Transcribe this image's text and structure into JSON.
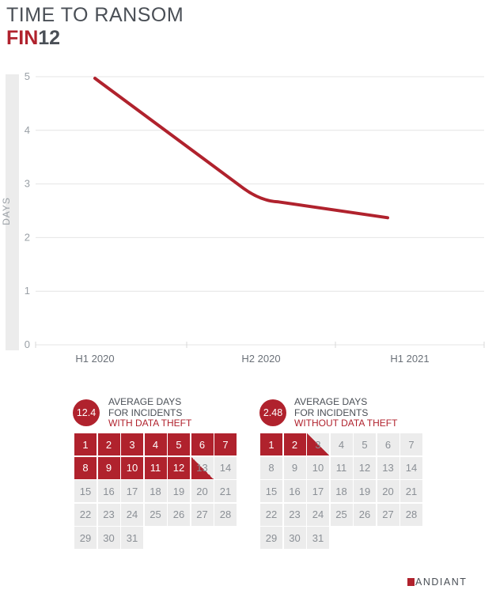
{
  "title": {
    "line1": "TIME TO RANSOM",
    "line2_red": "FIN",
    "line2_rest": "12"
  },
  "chart_data": {
    "type": "line",
    "categories": [
      "H1 2020",
      "H2 2020",
      "H1 2021"
    ],
    "series": [
      {
        "values": [
          4.97,
          2.68,
          2.37
        ],
        "color": "#b0222d"
      }
    ],
    "ylabel": "DAYS",
    "ylim": [
      0,
      5
    ],
    "yticks": [
      0,
      1,
      2,
      3,
      4,
      5
    ],
    "grid": true
  },
  "calendars": [
    {
      "avg": "12.4",
      "line1": "AVERAGE DAYS",
      "line2": "FOR INCIDENTS",
      "line3": "WITH DATA THEFT",
      "full_red_days": 12,
      "partial_day": 13,
      "days": [
        1,
        2,
        3,
        4,
        5,
        6,
        7,
        8,
        9,
        10,
        11,
        12,
        13,
        14,
        15,
        16,
        17,
        18,
        19,
        20,
        21,
        22,
        23,
        24,
        25,
        26,
        27,
        28,
        29,
        30,
        31
      ]
    },
    {
      "avg": "2.48",
      "line1": "AVERAGE DAYS",
      "line2": "FOR INCIDENTS",
      "line3": "WITHOUT DATA THEFT",
      "full_red_days": 2,
      "partial_day": 3,
      "days": [
        1,
        2,
        3,
        4,
        5,
        6,
        7,
        8,
        9,
        10,
        11,
        12,
        13,
        14,
        15,
        16,
        17,
        18,
        19,
        20,
        21,
        22,
        23,
        24,
        25,
        26,
        27,
        28,
        29,
        30,
        31
      ]
    }
  ],
  "brand": {
    "logo_text": "ANDIANT",
    "accent": "#b0222d"
  }
}
